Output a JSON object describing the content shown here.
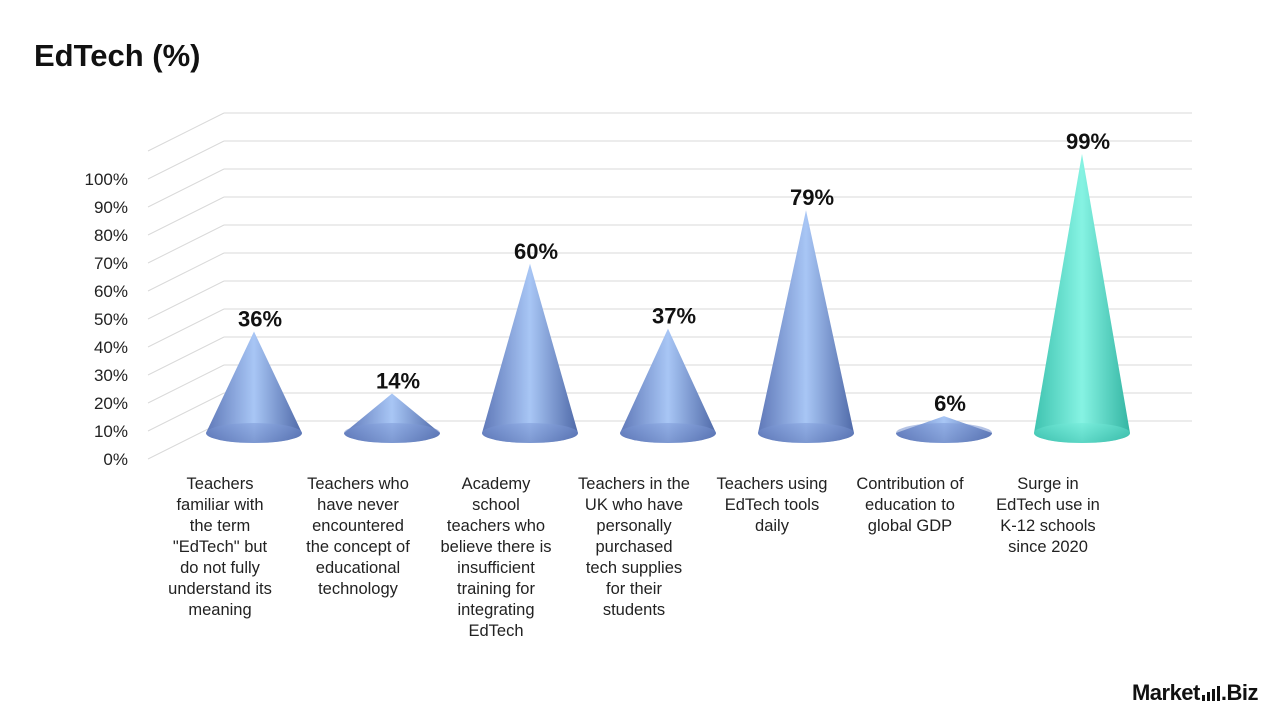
{
  "title": "EdTech (%)",
  "brand": {
    "part1": "Market",
    "dot": ".",
    "part2": "Biz"
  },
  "chart_data": {
    "type": "bar",
    "style": "3d-cone",
    "title": "EdTech (%)",
    "xlabel": "",
    "ylabel": "",
    "ylim": [
      0,
      100
    ],
    "ytick_labels": [
      "0%",
      "10%",
      "20%",
      "30%",
      "40%",
      "50%",
      "60%",
      "70%",
      "80%",
      "90%",
      "100%"
    ],
    "grid": true,
    "legend": "none",
    "categories": [
      "Teachers familiar with the term \"EdTech\" but do not fully understand its meaning",
      "Teachers who have never encountered the concept of educational technology",
      "Academy school teachers who believe there is insufficient training for integrating EdTech",
      "Teachers in the UK who have personally purchased tech supplies for their students",
      "Teachers using EdTech tools daily",
      "Contribution of education to global GDP",
      "Surge in EdTech use in K-12 schools since 2020"
    ],
    "category_lines": [
      [
        "Teachers",
        "familiar with",
        "the term",
        "\"EdTech\" but",
        "do not fully",
        "understand its",
        "meaning"
      ],
      [
        "Teachers who",
        "have never",
        "encountered",
        "the concept of",
        "educational",
        "technology"
      ],
      [
        "Academy",
        "school",
        "teachers who",
        "believe there is",
        "insufficient",
        "training for",
        "integrating",
        "EdTech"
      ],
      [
        "Teachers in the",
        "UK who have",
        "personally",
        "purchased",
        "tech supplies",
        "for their",
        "students"
      ],
      [
        "Teachers using",
        "EdTech tools",
        "daily"
      ],
      [
        "Contribution of",
        "education to",
        "global GDP"
      ],
      [
        "Surge in",
        "EdTech use in",
        "K-12 schools",
        "since 2020"
      ]
    ],
    "values": [
      36,
      14,
      60,
      37,
      79,
      6,
      99
    ],
    "data_labels": [
      "36%",
      "14%",
      "60%",
      "37%",
      "79%",
      "6%",
      "99%"
    ],
    "colors": {
      "default": "#6f8fcf",
      "highlight": "#5fe3cf",
      "gridline": "#d9d9d9",
      "text": "#111111"
    },
    "highlight_index": 6
  }
}
